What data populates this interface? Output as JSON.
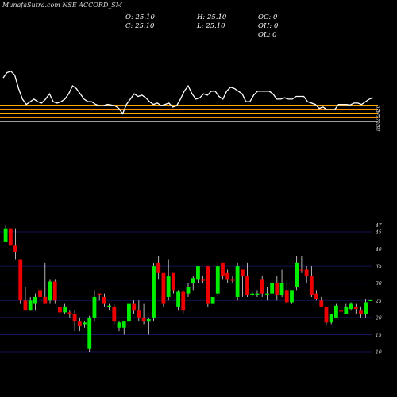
{
  "header": {
    "stock_label": "MunafaSutra.com NSE ACCORD_SM",
    "ohlc": {
      "col1": [
        "O: 25.10",
        "C: 25.10"
      ],
      "col2": [
        "H: 25.10",
        "L: 25.10"
      ],
      "col3": [
        "OC: 0",
        "OH: 0",
        "OL: 0"
      ]
    }
  },
  "colors": {
    "background": "#000000",
    "up": "#00ee00",
    "down": "#ee0000",
    "wick": "#ffffff",
    "grid": "#1a1a6a",
    "indicator_line": "#ffffff",
    "bands": [
      "#ffa500",
      "#ff8c00",
      "#ffffff"
    ]
  },
  "chart_data": [
    {
      "type": "line",
      "title": "",
      "y": [
        39,
        41,
        41.5,
        40,
        35,
        31,
        29,
        30,
        31,
        30,
        29.5,
        31,
        33,
        30,
        29.5,
        30,
        31,
        33,
        36,
        35,
        33,
        31,
        30,
        30,
        29,
        28.5,
        28.5,
        29,
        28.8,
        28.5,
        27.5,
        25.5,
        29,
        31,
        33,
        32,
        32.5,
        31.5,
        30,
        29,
        29.5,
        28.5,
        29,
        29.5,
        28,
        28.5,
        31,
        34,
        36,
        33,
        31,
        31.5,
        33,
        32.5,
        34,
        34,
        32,
        31,
        34,
        35.5,
        35,
        34,
        33,
        30,
        30,
        32.5,
        34,
        34,
        34,
        34,
        33,
        31,
        31,
        31.5,
        31,
        31,
        32,
        32,
        32,
        30,
        29.5,
        29,
        27.5,
        28,
        27,
        27,
        27,
        29,
        29,
        29,
        28.8,
        29.5,
        29.5,
        29,
        30,
        31,
        31.5
      ],
      "bands": [
        1,
        2,
        3,
        4,
        5
      ],
      "axis_labels": [
        "26",
        "24",
        "22",
        "20",
        "18"
      ]
    },
    {
      "type": "candlestick",
      "title": "",
      "ylim": [
        7,
        48
      ],
      "yticks": [
        10,
        15,
        20,
        25,
        30,
        35,
        40,
        45,
        47
      ],
      "candles": [
        [
          42,
          46,
          47,
          42,
          "up"
        ],
        [
          46,
          41,
          46,
          41,
          "down"
        ],
        [
          41,
          39,
          46,
          37,
          "down"
        ],
        [
          37,
          25,
          37,
          24,
          "down"
        ],
        [
          25,
          22,
          29,
          22,
          "down"
        ],
        [
          22,
          25,
          26,
          22,
          "up"
        ],
        [
          24,
          26,
          27,
          22,
          "up"
        ],
        [
          28,
          26,
          31,
          25,
          "down"
        ],
        [
          26,
          24,
          36,
          24,
          "down"
        ],
        [
          25,
          30.5,
          31,
          24,
          "up"
        ],
        [
          30.5,
          25,
          31,
          24,
          "down"
        ],
        [
          23,
          21.5,
          25,
          21,
          "down"
        ],
        [
          21.5,
          23,
          24,
          21,
          "up"
        ],
        [
          21.5,
          21,
          22,
          20,
          "down"
        ],
        [
          21,
          19,
          22,
          16,
          "down"
        ],
        [
          19,
          17.5,
          20,
          16,
          "down"
        ],
        [
          18,
          18.5,
          19,
          17,
          "up"
        ],
        [
          11,
          20,
          20.5,
          10,
          "up"
        ],
        [
          20,
          26,
          28,
          19,
          "up"
        ],
        [
          27,
          26.5,
          27,
          25,
          "down"
        ],
        [
          26,
          24,
          27,
          23,
          "down"
        ],
        [
          23,
          23.5,
          24,
          22,
          "up"
        ],
        [
          23,
          19,
          24,
          18,
          "down"
        ],
        [
          17,
          18.5,
          19,
          16,
          "up"
        ],
        [
          17,
          19,
          19,
          15,
          "up"
        ],
        [
          19,
          24,
          25,
          18,
          "up"
        ],
        [
          24,
          22,
          25,
          21,
          "down"
        ],
        [
          22,
          20,
          25,
          19,
          "down"
        ],
        [
          20,
          19,
          24,
          18,
          "down"
        ],
        [
          19,
          19.5,
          20,
          15,
          "up"
        ],
        [
          20,
          35,
          36,
          19,
          "up"
        ],
        [
          36,
          33,
          38,
          31,
          "down"
        ],
        [
          33,
          24,
          33,
          23,
          "down"
        ],
        [
          26,
          32,
          37,
          25,
          "up"
        ],
        [
          33,
          28,
          33,
          27,
          "down"
        ],
        [
          23,
          27.5,
          28,
          22,
          "up"
        ],
        [
          27.5,
          22,
          28,
          21,
          "down"
        ],
        [
          27,
          29,
          30,
          26,
          "up"
        ],
        [
          30,
          31.5,
          32,
          28,
          "up"
        ],
        [
          31,
          35,
          35,
          30,
          "up"
        ],
        [
          31,
          31,
          32,
          30,
          "down"
        ],
        [
          35,
          24,
          35,
          23,
          "down"
        ],
        [
          24,
          26,
          26,
          24,
          "up"
        ],
        [
          27,
          35,
          36,
          26,
          "up"
        ],
        [
          36,
          32,
          36,
          31,
          "down"
        ],
        [
          33,
          31,
          34,
          30,
          "down"
        ],
        [
          31,
          31,
          32,
          30,
          "down"
        ],
        [
          26,
          35,
          36,
          25,
          "up"
        ],
        [
          34,
          32,
          34,
          26,
          "down"
        ],
        [
          32,
          26.5,
          36,
          26,
          "down"
        ],
        [
          26.5,
          27,
          27.5,
          26,
          "up"
        ],
        [
          26.5,
          27,
          28,
          26,
          "up"
        ],
        [
          31,
          27,
          32,
          26,
          "down"
        ],
        [
          27,
          27,
          29,
          25,
          "up"
        ],
        [
          27,
          30,
          31,
          26,
          "up"
        ],
        [
          30,
          26.5,
          32,
          25,
          "down"
        ],
        [
          26.5,
          30,
          34,
          26,
          "up"
        ],
        [
          28,
          24.5,
          31,
          24,
          "down"
        ],
        [
          24.5,
          28,
          28,
          24,
          "up"
        ],
        [
          29,
          36,
          38,
          28,
          "up"
        ],
        [
          34,
          34,
          38,
          33,
          "down"
        ],
        [
          34,
          32,
          35,
          30,
          "down"
        ],
        [
          32,
          26.5,
          35,
          26,
          "down"
        ],
        [
          27,
          25.5,
          28,
          25,
          "down"
        ],
        [
          25,
          23,
          26,
          23,
          "down"
        ],
        [
          23,
          18.5,
          23,
          18,
          "down"
        ],
        [
          18.5,
          21,
          21,
          18,
          "up"
        ],
        [
          20,
          23.5,
          24,
          20,
          "up"
        ],
        [
          22,
          22,
          23,
          21,
          "down"
        ],
        [
          21,
          23,
          24,
          21,
          "up"
        ],
        [
          22.5,
          24,
          24.5,
          22,
          "up"
        ],
        [
          23,
          22.5,
          24,
          21,
          "down"
        ],
        [
          22,
          21,
          23,
          20,
          "down"
        ],
        [
          21,
          24.5,
          25.5,
          20,
          "up"
        ],
        [
          25.1,
          25.1,
          25.1,
          25.1,
          "up"
        ]
      ]
    }
  ]
}
